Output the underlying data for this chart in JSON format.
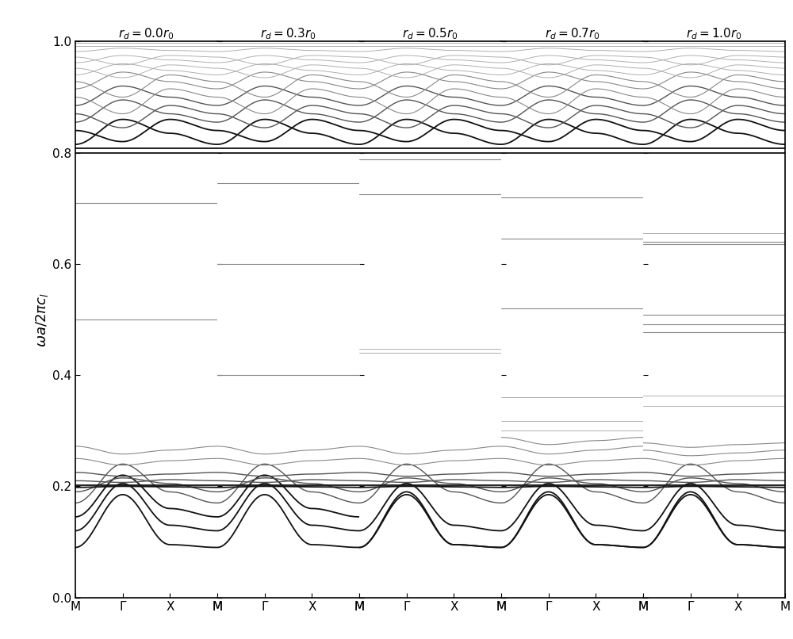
{
  "panel_titles_math": [
    "$r_d=0.0r_0$",
    "$r_d=0.3r_0$",
    "$r_d=0.5r_0$",
    "$r_d=0.7r_0$",
    "$r_d=1.0r_0$"
  ],
  "xtick_labels": [
    "M",
    "Γ",
    "X",
    "M"
  ],
  "ylabel": "$\\omega a/2\\pi c_l$",
  "ylim": [
    0.0,
    1.0
  ],
  "yticks": [
    0.0,
    0.2,
    0.4,
    0.6,
    0.8,
    1.0
  ],
  "background_color": "#ffffff"
}
